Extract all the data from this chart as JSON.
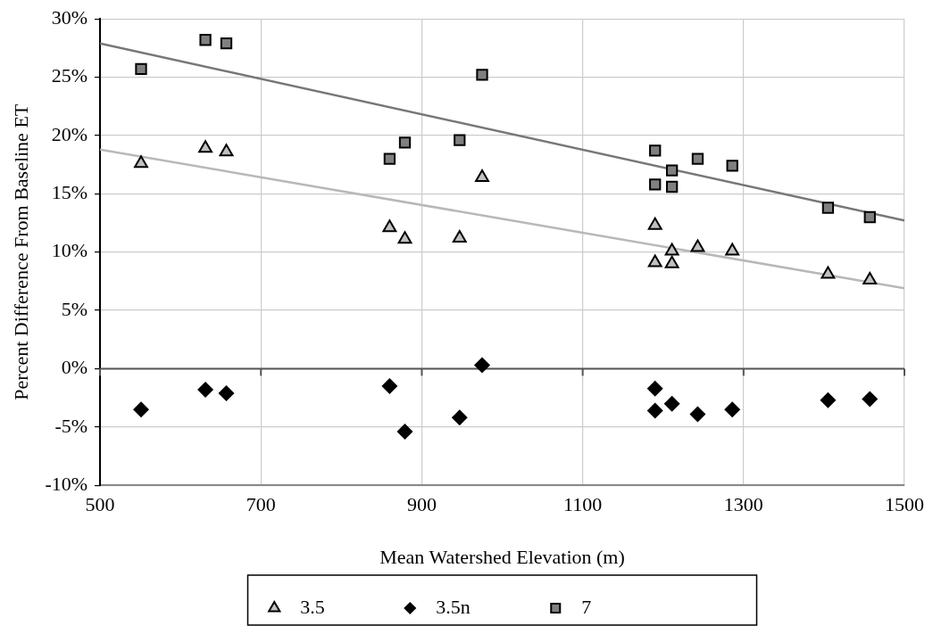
{
  "chart_data": {
    "type": "scatter",
    "xlabel": "Mean Watershed Elevation (m)",
    "ylabel": "Percent Difference From Baseline ET",
    "xlim": [
      500,
      1500
    ],
    "xticks": [
      500,
      700,
      900,
      1100,
      1300,
      1500
    ],
    "ylim": [
      -10,
      30
    ],
    "yticks": [
      {
        "value": -10,
        "label": "-10%"
      },
      {
        "value": -5,
        "label": "-5%"
      },
      {
        "value": 0,
        "label": "0%"
      },
      {
        "value": 5,
        "label": "5%"
      },
      {
        "value": 10,
        "label": "10%"
      },
      {
        "value": 15,
        "label": "15%"
      },
      {
        "value": 20,
        "label": "20%"
      },
      {
        "value": 25,
        "label": "25%"
      },
      {
        "value": 30,
        "label": "30%"
      }
    ],
    "grid": true,
    "legend": "bottom",
    "ref_lines": [
      {
        "axis": "y",
        "value": 0,
        "color": "#555555"
      }
    ],
    "series": [
      {
        "name": "3.5",
        "color": "#c0c0c0",
        "marker": "triangle",
        "x": [
          551,
          631,
          657,
          860,
          879,
          947,
          975,
          1190,
          1190,
          1211,
          1211,
          1243,
          1286,
          1405,
          1457
        ],
        "values": [
          17.6,
          18.9,
          18.6,
          12.1,
          11.1,
          11.2,
          16.4,
          12.3,
          9.1,
          10.1,
          9.0,
          10.4,
          10.1,
          8.1,
          7.6
        ]
      },
      {
        "name": "3.5n",
        "color": "#000000",
        "marker": "diamond",
        "x": [
          551,
          631,
          657,
          860,
          879,
          947,
          975,
          1190,
          1190,
          1211,
          1243,
          1286,
          1405,
          1457
        ],
        "values": [
          -3.5,
          -1.8,
          -2.1,
          -1.5,
          -5.4,
          -4.2,
          0.3,
          -1.7,
          -3.6,
          -3.0,
          -3.9,
          -3.5,
          -2.7,
          -2.6
        ]
      },
      {
        "name": "7",
        "color": "#808080",
        "marker": "square",
        "x": [
          551,
          631,
          657,
          860,
          879,
          947,
          975,
          1190,
          1190,
          1211,
          1211,
          1243,
          1286,
          1405,
          1457
        ],
        "values": [
          25.7,
          28.2,
          27.9,
          18.0,
          19.4,
          19.6,
          25.2,
          15.8,
          18.7,
          17.0,
          15.6,
          18.0,
          17.4,
          13.8,
          13.0
        ]
      },
      {
        "type": "line",
        "color": "#777777",
        "marker": "none",
        "x": [
          500,
          1500
        ],
        "values": [
          27.9,
          12.7
        ]
      },
      {
        "type": "line",
        "color": "#b8b8b8",
        "marker": "none",
        "x": [
          500,
          1500
        ],
        "values": [
          18.8,
          6.9
        ]
      }
    ]
  }
}
